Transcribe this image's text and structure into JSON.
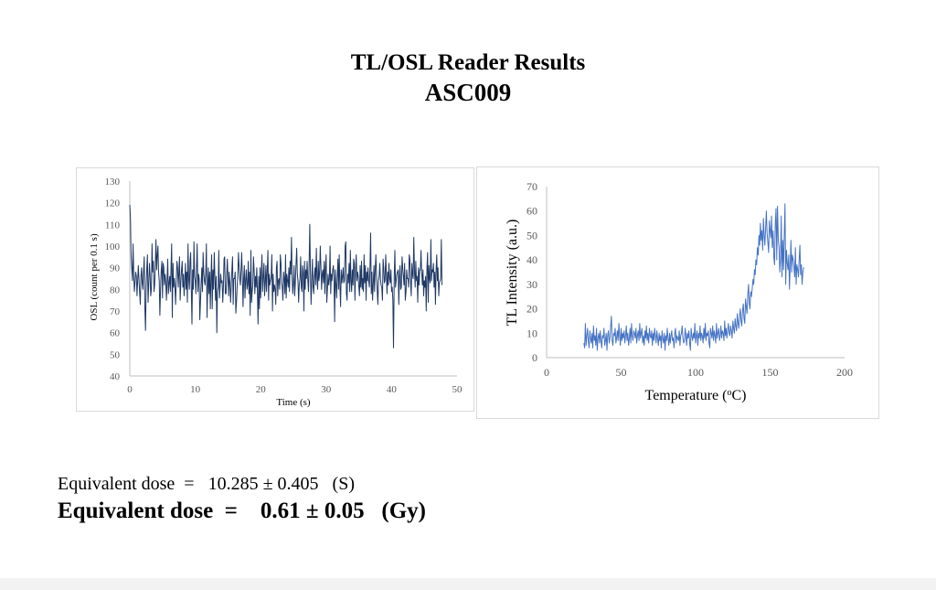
{
  "header": {
    "title": "TL/OSL Reader Results",
    "sample_id": "ASC009"
  },
  "results": {
    "dose_s_line": "Equivalent dose  =   10.285 ± 0.405   (S)",
    "dose_gy_line": "Equivalent dose  =    0.61 ± 0.05   (Gy)"
  },
  "colors": {
    "osl_line": "#1f3864",
    "tl_line": "#4472c4",
    "axis": "#bfbfbf",
    "tick_text": "#595959"
  },
  "chart_data": [
    {
      "type": "line",
      "title": "",
      "xlabel": "Time (s)",
      "ylabel": "OSL (count per 0.1 s)",
      "xlim": [
        0,
        50
      ],
      "ylim": [
        40,
        130
      ],
      "x_ticks": [
        0,
        10,
        20,
        30,
        40,
        50
      ],
      "y_ticks": [
        40,
        50,
        60,
        70,
        80,
        90,
        100,
        110,
        120,
        130
      ],
      "grid": false,
      "legend": "none",
      "series": [
        {
          "x_start": 0,
          "x_step": 0.1,
          "values": [
            119,
            113,
            96,
            90,
            84,
            101,
            87,
            79,
            83,
            88,
            86,
            77,
            84,
            91,
            85,
            79,
            73,
            86,
            90,
            83,
            80,
            88,
            95,
            71,
            61,
            81,
            90,
            96,
            74,
            83,
            92,
            86,
            77,
            80,
            101,
            88,
            93,
            79,
            82,
            91,
            103,
            89,
            96,
            100,
            88,
            84,
            68,
            81,
            89,
            93,
            76,
            92,
            90,
            82,
            87,
            83,
            75,
            84,
            94,
            78,
            83,
            86,
            79,
            90,
            101,
            67,
            92,
            81,
            85,
            81,
            73,
            84,
            93,
            90,
            81,
            88,
            95,
            75,
            83,
            89,
            93,
            81,
            87,
            77,
            83,
            92,
            80,
            88,
            74,
            101,
            85,
            80,
            93,
            97,
            80,
            64,
            89,
            80,
            102,
            86,
            84,
            78,
            90,
            101,
            79,
            87,
            85,
            66,
            74,
            82,
            90,
            79,
            97,
            88,
            84,
            82,
            87,
            101,
            67,
            80,
            90,
            78,
            88,
            71,
            85,
            96,
            71,
            89,
            80,
            97,
            86,
            75,
            86,
            60,
            79,
            81,
            98,
            76,
            81,
            87,
            83,
            84,
            74,
            81,
            94,
            95,
            78,
            78,
            86,
            94,
            85,
            77,
            88,
            83,
            74,
            82,
            89,
            95,
            73,
            85,
            85,
            88,
            69,
            74,
            81,
            86,
            97,
            90,
            85,
            82,
            89,
            97,
            85,
            72,
            85,
            91,
            76,
            84,
            89,
            80,
            82,
            93,
            78,
            88,
            68,
            98,
            74,
            79,
            82,
            95,
            89,
            78,
            86,
            81,
            90,
            79,
            64,
            86,
            71,
            90,
            76,
            88,
            96,
            79,
            86,
            92,
            77,
            83,
            91,
            79,
            89,
            98,
            75,
            87,
            82,
            84,
            86,
            96,
            70,
            87,
            79,
            82,
            80,
            73,
            90,
            93,
            77,
            84,
            85,
            80,
            96,
            92,
            83,
            81,
            75,
            88,
            85,
            78,
            96,
            76,
            87,
            84,
            81,
            90,
            79,
            93,
            87,
            104,
            85,
            78,
            83,
            91,
            77,
            83,
            92,
            99,
            87,
            84,
            74,
            82,
            85,
            95,
            81,
            79,
            91,
            88,
            70,
            93,
            80,
            89,
            85,
            93,
            84,
            79,
            92,
            110,
            88,
            73,
            83,
            94,
            81,
            78,
            86,
            90,
            82,
            99,
            85,
            80,
            93,
            84,
            87,
            100,
            90,
            80,
            87,
            89,
            83,
            93,
            78,
            90,
            96,
            74,
            80,
            87,
            82,
            85,
            100,
            78,
            87,
            84,
            89,
            91,
            85,
            65,
            89,
            83,
            76,
            86,
            94,
            80,
            96,
            83,
            72,
            89,
            83,
            86,
            90,
            83,
            84,
            100,
            102,
            78,
            75,
            87,
            83,
            92,
            79,
            98,
            84,
            79,
            89,
            82,
            94,
            92,
            75,
            89,
            96,
            84,
            88,
            86,
            81,
            77,
            91,
            81,
            93,
            80,
            85,
            79,
            96,
            83,
            91,
            75,
            88,
            84,
            90,
            84,
            81,
            91,
            106,
            78,
            88,
            75,
            83,
            91,
            79,
            89,
            96,
            87,
            80,
            73,
            84,
            86,
            92,
            85,
            82,
            81,
            75,
            94,
            90,
            83,
            84,
            96,
            87,
            78,
            88,
            82,
            92,
            85,
            83,
            89,
            79,
            81,
            75,
            53,
            86,
            98,
            81,
            84,
            87,
            88,
            89,
            73,
            86,
            91,
            80,
            81,
            95,
            90,
            86,
            82,
            92,
            75,
            79,
            89,
            85,
            85,
            81,
            96,
            94,
            83,
            77,
            92,
            87,
            85,
            104,
            88,
            81,
            93,
            84,
            86,
            74,
            90,
            82,
            89,
            89,
            98,
            88,
            82,
            89,
            77,
            84,
            81,
            86,
            70,
            90,
            97,
            74,
            91,
            85,
            83,
            103,
            84,
            89,
            88,
            92,
            81,
            88,
            73,
            89,
            96,
            84,
            90,
            77,
            83,
            84,
            85,
            103,
            82
          ]
        }
      ]
    },
    {
      "type": "line",
      "title": "",
      "xlabel": "Temperature (oC)",
      "ylabel": "TL Intensity (a.u.)",
      "xlim": [
        0,
        200
      ],
      "ylim": [
        0,
        70
      ],
      "x_ticks": [
        0,
        50,
        100,
        150,
        200
      ],
      "y_ticks": [
        0,
        10,
        20,
        30,
        40,
        50,
        60,
        70
      ],
      "grid": false,
      "legend": "none",
      "series": [
        {
          "x_start": 25,
          "x_step": 0.5,
          "values": [
            6,
            4,
            14,
            5,
            9,
            12,
            7,
            4,
            11,
            8,
            6,
            10,
            4,
            13,
            7,
            9,
            5,
            12,
            3,
            8,
            10,
            6,
            11,
            7,
            4,
            9,
            8,
            12,
            5,
            7,
            10,
            3,
            9,
            11,
            6,
            8,
            13,
            17,
            7,
            5,
            10,
            9,
            12,
            6,
            8,
            11,
            7,
            14,
            9,
            5,
            12,
            7,
            10,
            8,
            11,
            6,
            9,
            13,
            7,
            10,
            5,
            8,
            12,
            6,
            14,
            9,
            7,
            11,
            10,
            8,
            12,
            6,
            9,
            11,
            7,
            14,
            8,
            10,
            12,
            6,
            9,
            5,
            11,
            8,
            13,
            7,
            10,
            6,
            12,
            9,
            8,
            11,
            5,
            10,
            7,
            12,
            9,
            6,
            11,
            8,
            5,
            10,
            7,
            9,
            4,
            11,
            8,
            6,
            10,
            3,
            9,
            7,
            12,
            8,
            5,
            10,
            6,
            9,
            11,
            7,
            8,
            4,
            10,
            12,
            6,
            9,
            8,
            7,
            11,
            5,
            9,
            10,
            13,
            8,
            6,
            7,
            12,
            9,
            5,
            10,
            8,
            11,
            6,
            3,
            12,
            9,
            7,
            10,
            8,
            14,
            6,
            9,
            11,
            5,
            10,
            8,
            13,
            7,
            10,
            9,
            6,
            12,
            8,
            14,
            7,
            10,
            9,
            11,
            6,
            4,
            12,
            10,
            8,
            13,
            7,
            11,
            9,
            6,
            14,
            8,
            10,
            12,
            7,
            9,
            13,
            8,
            11,
            10,
            7,
            15,
            9,
            12,
            8,
            11,
            14,
            10,
            9,
            13,
            11,
            8,
            15,
            12,
            10,
            16,
            13,
            11,
            18,
            14,
            12,
            17,
            20,
            15,
            13,
            19,
            22,
            16,
            14,
            24,
            21,
            18,
            26,
            30,
            22,
            20,
            27,
            25,
            28,
            32,
            30,
            36,
            34,
            40,
            38,
            45,
            42,
            50,
            46,
            55,
            48,
            52,
            44,
            57,
            50,
            46,
            53,
            60,
            51,
            47,
            43,
            56,
            52,
            49,
            58,
            45,
            52,
            41,
            38,
            55,
            61,
            40,
            62,
            48,
            45,
            35,
            40,
            58,
            33,
            48,
            36,
            50,
            63,
            30,
            44,
            39,
            36,
            42,
            28,
            38,
            48,
            35,
            42,
            40,
            37,
            33,
            45,
            30,
            38,
            36,
            33,
            40,
            46,
            34,
            38,
            30,
            35,
            37
          ]
        }
      ]
    }
  ]
}
